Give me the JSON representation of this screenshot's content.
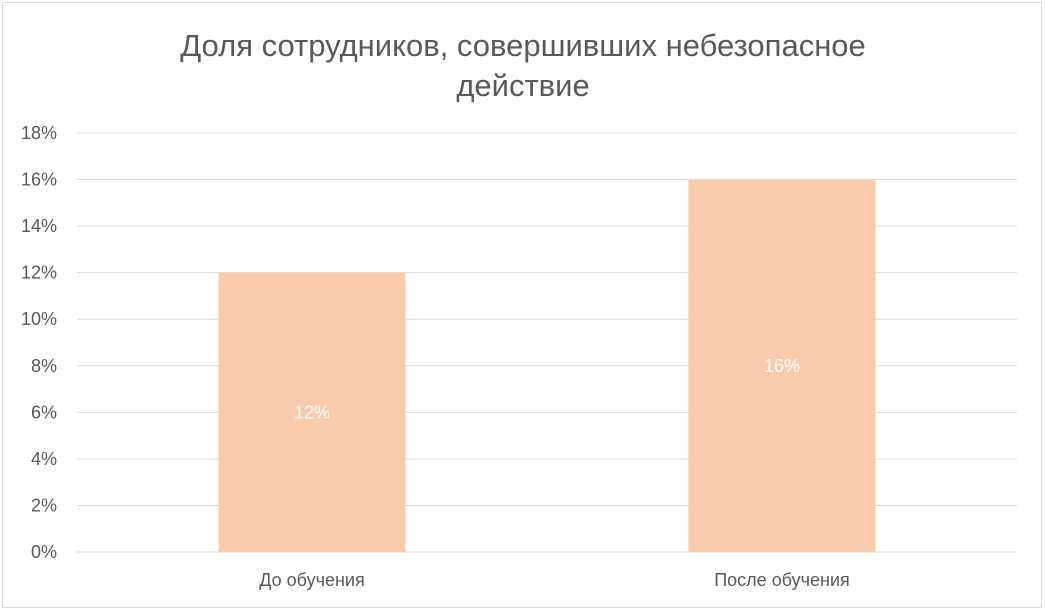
{
  "chart_data": {
    "type": "bar",
    "title": "Доля сотрудников, совершивших небезопасное\nдействие",
    "categories": [
      "До обучения",
      "После обучения"
    ],
    "values": [
      0.12,
      0.16
    ],
    "data_labels": [
      "12%",
      "16%"
    ],
    "ylim": [
      0,
      0.18
    ],
    "y_ticks": [
      0,
      0.02,
      0.04,
      0.06,
      0.08,
      0.1,
      0.12,
      0.14,
      0.16,
      0.18
    ],
    "y_tick_labels": [
      "0%",
      "2%",
      "4%",
      "6%",
      "8%",
      "10%",
      "12%",
      "14%",
      "16%",
      "18%"
    ],
    "xlabel": "",
    "ylabel": "",
    "grid": true,
    "legend": "none",
    "bar_color": "#f8cbad",
    "grid_color": "#d9d9d9",
    "text_color": "#595959",
    "data_label_color": "#ffffff"
  }
}
